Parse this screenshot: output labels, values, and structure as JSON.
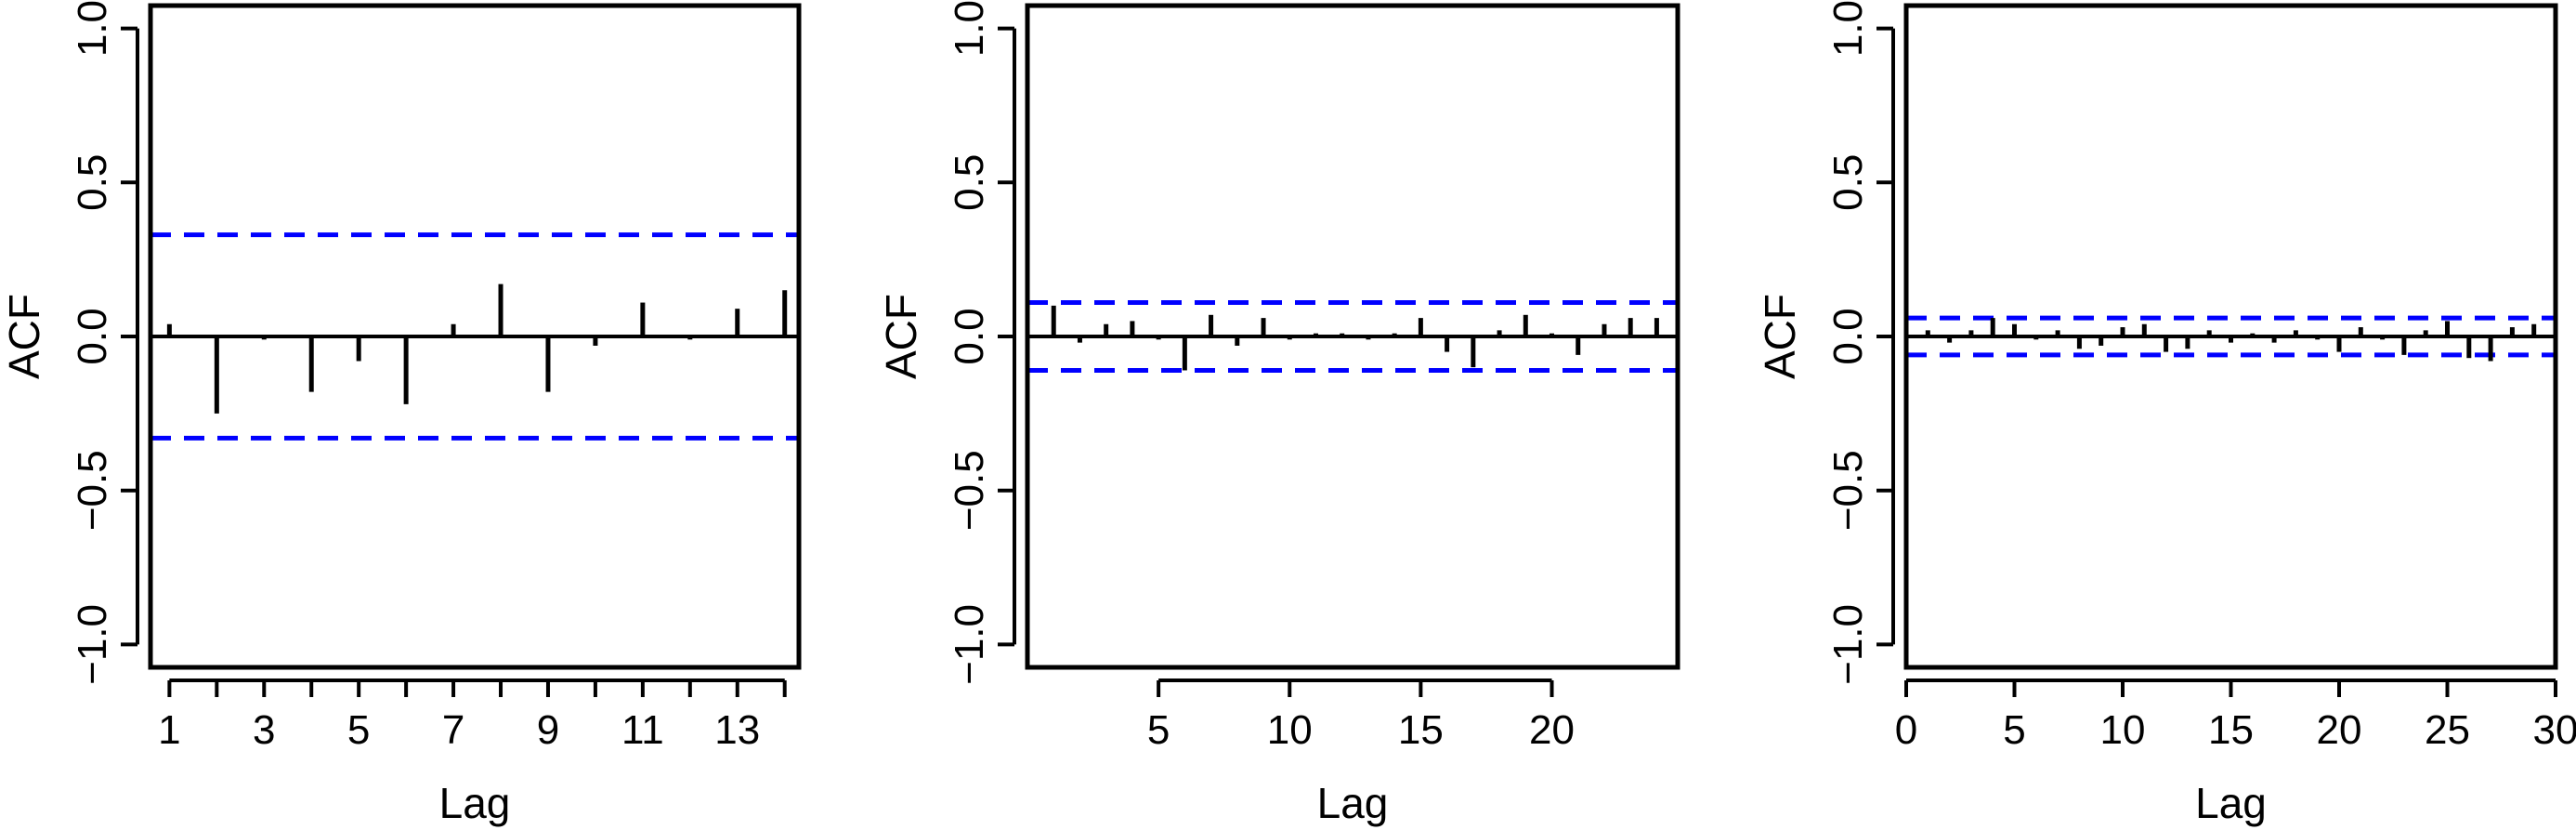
{
  "chart_data": [
    {
      "type": "bar",
      "xlabel": "Lag",
      "ylabel": "ACF",
      "xlim": [
        0.6,
        14.3
      ],
      "ylim": [
        -1.0,
        1.0
      ],
      "xticks": [
        1,
        2,
        3,
        4,
        5,
        6,
        7,
        8,
        9,
        10,
        11,
        12,
        13,
        14
      ],
      "xtick_labels": [
        "1",
        "",
        "3",
        "",
        "5",
        "",
        "7",
        "",
        "9",
        "",
        "11",
        "",
        "13",
        ""
      ],
      "yticks": [
        -1.0,
        -0.5,
        0.0,
        0.5,
        1.0
      ],
      "ytick_labels": [
        "−1.0",
        "−0.5",
        "0.0",
        "0.5",
        "1.0"
      ],
      "ci": 0.33,
      "ci_color": "#0000ff",
      "series": [
        {
          "x": [
            1,
            2,
            3,
            4,
            5,
            6,
            7,
            8,
            9,
            10,
            11,
            12,
            13,
            14
          ],
          "values": [
            0.04,
            -0.25,
            -0.01,
            -0.18,
            -0.08,
            -0.22,
            0.04,
            0.17,
            -0.18,
            -0.03,
            0.11,
            -0.01,
            0.09,
            0.15
          ]
        }
      ]
    },
    {
      "type": "bar",
      "xlabel": "Lag",
      "ylabel": "ACF",
      "xlim": [
        0.0,
        24.8
      ],
      "ylim": [
        -1.0,
        1.0
      ],
      "xticks": [
        5,
        10,
        15,
        20
      ],
      "xtick_labels": [
        "5",
        "10",
        "15",
        "20"
      ],
      "yticks": [
        -1.0,
        -0.5,
        0.0,
        0.5,
        1.0
      ],
      "ytick_labels": [
        "−1.0",
        "−0.5",
        "0.0",
        "0.5",
        "1.0"
      ],
      "ci": 0.11,
      "ci_color": "#0000ff",
      "series": [
        {
          "x": [
            1,
            2,
            3,
            4,
            5,
            6,
            7,
            8,
            9,
            10,
            11,
            12,
            13,
            14,
            15,
            16,
            17,
            18,
            19,
            20,
            21,
            22,
            23,
            24
          ],
          "values": [
            0.1,
            -0.02,
            0.04,
            0.05,
            -0.01,
            -0.11,
            0.07,
            -0.03,
            0.06,
            -0.01,
            0.01,
            0.01,
            -0.01,
            0.01,
            0.06,
            -0.05,
            -0.1,
            0.02,
            0.07,
            0.01,
            -0.06,
            0.04,
            0.06,
            0.06
          ]
        }
      ]
    },
    {
      "type": "bar",
      "xlabel": "Lag",
      "ylabel": "ACF",
      "xlim": [
        0.0,
        30.0
      ],
      "ylim": [
        -1.0,
        1.0
      ],
      "xticks": [
        0,
        5,
        10,
        15,
        20,
        25,
        30
      ],
      "xtick_labels": [
        "0",
        "5",
        "10",
        "15",
        "20",
        "25",
        "30"
      ],
      "yticks": [
        -1.0,
        -0.5,
        0.0,
        0.5,
        1.0
      ],
      "ytick_labels": [
        "−1.0",
        "−0.5",
        "0.0",
        "0.5",
        "1.0"
      ],
      "ci": 0.06,
      "ci_color": "#0000ff",
      "series": [
        {
          "x": [
            1,
            2,
            3,
            4,
            5,
            6,
            7,
            8,
            9,
            10,
            11,
            12,
            13,
            14,
            15,
            16,
            17,
            18,
            19,
            20,
            21,
            22,
            23,
            24,
            25,
            26,
            27,
            28,
            29,
            30
          ],
          "values": [
            0.02,
            -0.02,
            0.02,
            0.06,
            0.04,
            -0.01,
            0.02,
            -0.04,
            -0.03,
            0.03,
            0.04,
            -0.05,
            -0.04,
            0.02,
            -0.02,
            0.01,
            -0.02,
            0.02,
            -0.01,
            -0.05,
            0.03,
            -0.01,
            -0.06,
            0.02,
            0.05,
            -0.07,
            -0.08,
            0.03,
            0.04,
            0.03
          ]
        }
      ]
    }
  ]
}
